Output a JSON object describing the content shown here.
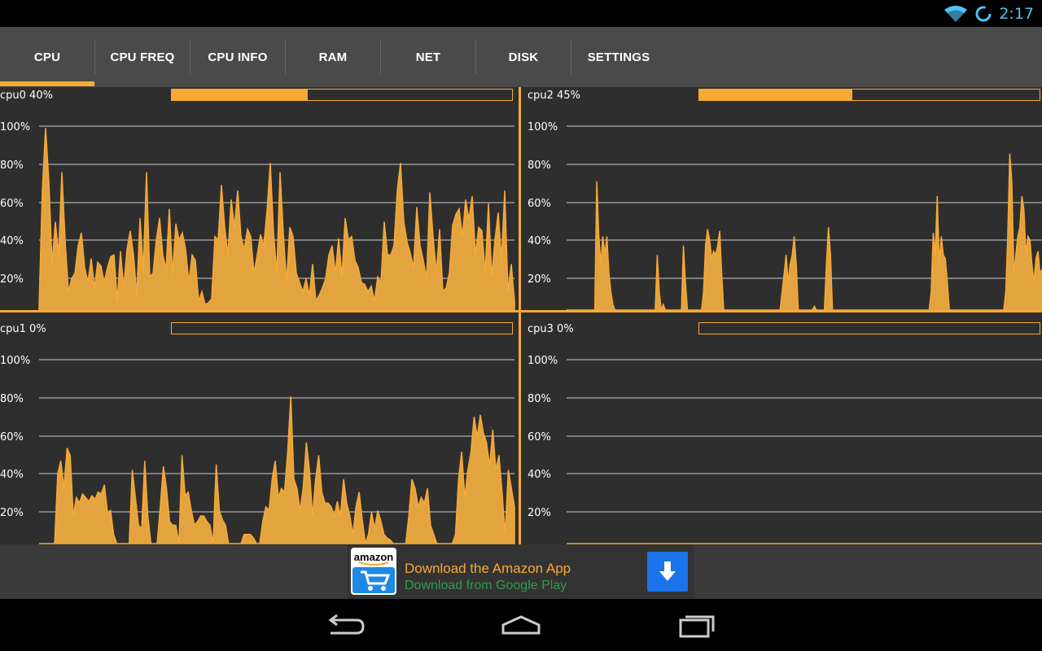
{
  "status": {
    "time": "2:17",
    "wifi_icon": "wifi-icon",
    "sync_icon": "sync-circle-icon"
  },
  "tabs": [
    {
      "label": "CPU",
      "selected": true
    },
    {
      "label": "CPU FREQ"
    },
    {
      "label": "CPU INFO"
    },
    {
      "label": "RAM"
    },
    {
      "label": "NET"
    },
    {
      "label": "DISK"
    },
    {
      "label": "SETTINGS"
    }
  ],
  "colors": {
    "accent": "#f7a935",
    "panel_bg": "#2e2e2e",
    "tabbar_bg": "#4a4a4a",
    "clock": "#4fc3f7"
  },
  "y_axis_labels": [
    "100%",
    "80%",
    "60%",
    "40%",
    "20%"
  ],
  "cpus": [
    {
      "label": "cpu0 40%",
      "usage": 0.4,
      "values": [
        2,
        65,
        99,
        70,
        25,
        48,
        30,
        75,
        38,
        10,
        17,
        20,
        35,
        42,
        23,
        15,
        28,
        12,
        26,
        24,
        15,
        23,
        29,
        30,
        5,
        32,
        12,
        33,
        43,
        30,
        8,
        50,
        22,
        75,
        18,
        20,
        38,
        50,
        30,
        22,
        55,
        19,
        47,
        38,
        42,
        33,
        15,
        30,
        27,
        5,
        10,
        3,
        4,
        6,
        40,
        38,
        68,
        45,
        30,
        60,
        45,
        65,
        40,
        33,
        44,
        40,
        20,
        30,
        41,
        35,
        54,
        80,
        42,
        20,
        75,
        42,
        15,
        45,
        40,
        20,
        15,
        10,
        17,
        8,
        25,
        5,
        8,
        12,
        17,
        30,
        35,
        20,
        39,
        18,
        50,
        38,
        40,
        27,
        23,
        15,
        14,
        10,
        13,
        5,
        18,
        15,
        48,
        30,
        30,
        35,
        65,
        80,
        48,
        37,
        31,
        23,
        56,
        35,
        27,
        17,
        64,
        40,
        20,
        44,
        10,
        12,
        20,
        46,
        52,
        55,
        40,
        60,
        49,
        62,
        30,
        45,
        43,
        20,
        58,
        18,
        38,
        53,
        27,
        65,
        10,
        25,
        5
      ]
    },
    {
      "label": "cpu1 0%",
      "usage": 0.0,
      "values": [
        0,
        0,
        0,
        0,
        0,
        0,
        38,
        45,
        30,
        52,
        48,
        15,
        25,
        22,
        27,
        25,
        23,
        26,
        24,
        28,
        27,
        32,
        17,
        18,
        5,
        0,
        0,
        0,
        0,
        0,
        40,
        25,
        10,
        8,
        45,
        15,
        0,
        0,
        0,
        20,
        42,
        30,
        12,
        10,
        10,
        0,
        48,
        26,
        28,
        18,
        10,
        12,
        15,
        15,
        12,
        10,
        0,
        43,
        18,
        13,
        10,
        0,
        0,
        0,
        0,
        0,
        5,
        5,
        5,
        3,
        0,
        0,
        12,
        20,
        18,
        35,
        45,
        25,
        30,
        28,
        50,
        80,
        35,
        30,
        18,
        30,
        55,
        40,
        15,
        35,
        48,
        28,
        22,
        22,
        20,
        15,
        23,
        15,
        35,
        22,
        15,
        5,
        20,
        28,
        13,
        0,
        5,
        17,
        8,
        18,
        12,
        5,
        3,
        2,
        0,
        0,
        0,
        0,
        0,
        15,
        35,
        30,
        20,
        25,
        22,
        30,
        10,
        5,
        0,
        0,
        0,
        0,
        0,
        0,
        5,
        35,
        50,
        25,
        40,
        50,
        69,
        58,
        70,
        60,
        55,
        42,
        62,
        40,
        48,
        28,
        5,
        40,
        30,
        20
      ]
    },
    {
      "label": "cpu2 45%",
      "usage": 0.45,
      "values": [
        0,
        0,
        0,
        0,
        0,
        0,
        0,
        0,
        0,
        0,
        0,
        0,
        0,
        0,
        0,
        70,
        40,
        25,
        40,
        30,
        40,
        20,
        10,
        3,
        0,
        0,
        0,
        0,
        0,
        0,
        0,
        0,
        0,
        0,
        0,
        0,
        0,
        0,
        0,
        0,
        0,
        0,
        0,
        0,
        0,
        30,
        10,
        0,
        3,
        0,
        0,
        0,
        0,
        0,
        0,
        0,
        0,
        0,
        35,
        15,
        0,
        0,
        0,
        0,
        0,
        0,
        0,
        0,
        10,
        35,
        44,
        38,
        28,
        32,
        30,
        35,
        43,
        20,
        0,
        0,
        0,
        0,
        0,
        0,
        0,
        0,
        0,
        0,
        0,
        0,
        0,
        0,
        0,
        0,
        0,
        0,
        0,
        0,
        0,
        0,
        0,
        0,
        0,
        0,
        0,
        0,
        0,
        10,
        20,
        30,
        15,
        25,
        30,
        40,
        25,
        0,
        0,
        0,
        0,
        0,
        0,
        0,
        0,
        2,
        0,
        0,
        0,
        0,
        0,
        25,
        45,
        30,
        0,
        0,
        0,
        0,
        0,
        0,
        0,
        0,
        0,
        0,
        0,
        0,
        0,
        0,
        0,
        0,
        0,
        0,
        0,
        0,
        0,
        0,
        0,
        0,
        0,
        0,
        0,
        0,
        0,
        0,
        0,
        0,
        0,
        0,
        0,
        0,
        0,
        0,
        0,
        0,
        0,
        0,
        0,
        0,
        0,
        0,
        0,
        0,
        0,
        10,
        42,
        30,
        62,
        25,
        40,
        30,
        28,
        15,
        0,
        0,
        0,
        0,
        0,
        0,
        0,
        0,
        0,
        0,
        0,
        0,
        0,
        0,
        0,
        0,
        0,
        0,
        0,
        0,
        0,
        0,
        0,
        0,
        0,
        0,
        0,
        0,
        10,
        40,
        85,
        70,
        20,
        30,
        40,
        45,
        62,
        55,
        30,
        40,
        38,
        25,
        15,
        28,
        32,
        20,
        22
      ]
    },
    {
      "label": "cpu3 0%",
      "usage": 0.0,
      "values": [
        0,
        0,
        0,
        0,
        0,
        0,
        0,
        0,
        0,
        0,
        0,
        0,
        0,
        0,
        0,
        0,
        0,
        0,
        0,
        0,
        0,
        0,
        0,
        0,
        0,
        0,
        0,
        0,
        0,
        0,
        0,
        0,
        0,
        0,
        0,
        0,
        0,
        0,
        0,
        0,
        0,
        0,
        0,
        0,
        0,
        0,
        0,
        0,
        0,
        0,
        0,
        0,
        0,
        0,
        0,
        0,
        0,
        0,
        0,
        0,
        0,
        0,
        0,
        0,
        0,
        0,
        0,
        0,
        0,
        0,
        0,
        0,
        0,
        0,
        0,
        0,
        0,
        0,
        0,
        0,
        0,
        0,
        0,
        0,
        0,
        0,
        0,
        0,
        0,
        0,
        0,
        0,
        0,
        0,
        0,
        0,
        0,
        0,
        0,
        0,
        0,
        0,
        0,
        0,
        0,
        0,
        0,
        0,
        0,
        0,
        0,
        0,
        0,
        0,
        0,
        0,
        0,
        0,
        0,
        0,
        0,
        0,
        0,
        0,
        0,
        0,
        0,
        0,
        0,
        0,
        0,
        0,
        0,
        0,
        0,
        0,
        0,
        0,
        0,
        0,
        0,
        0,
        0,
        0,
        0,
        0,
        0,
        0,
        0,
        0,
        0,
        0,
        0,
        0,
        0,
        0,
        0,
        0,
        0,
        0,
        0,
        0,
        0,
        0,
        0,
        0,
        0,
        0,
        0,
        0,
        0,
        0,
        0,
        0,
        0,
        0,
        0,
        0,
        0,
        0,
        0,
        0,
        0,
        0,
        0,
        0,
        0,
        0,
        0,
        0,
        0,
        0,
        0,
        0,
        0,
        0,
        0,
        0,
        0,
        0,
        0,
        0,
        0,
        0,
        0,
        0,
        0,
        0,
        0,
        0,
        0,
        0,
        0,
        0,
        0,
        0,
        0,
        0,
        0,
        0,
        0,
        0,
        0,
        0,
        0,
        0,
        0,
        0,
        0,
        0,
        0,
        0,
        0,
        0,
        0,
        0,
        0,
        0,
        0,
        0
      ]
    }
  ],
  "ad": {
    "brand": "amazon",
    "title": "Download the Amazon App",
    "subtitle": "Download from Google Play",
    "download_icon": "download-arrow-icon"
  },
  "nav": {
    "back_icon": "back-icon",
    "home_icon": "home-icon",
    "recents_icon": "recents-icon"
  }
}
